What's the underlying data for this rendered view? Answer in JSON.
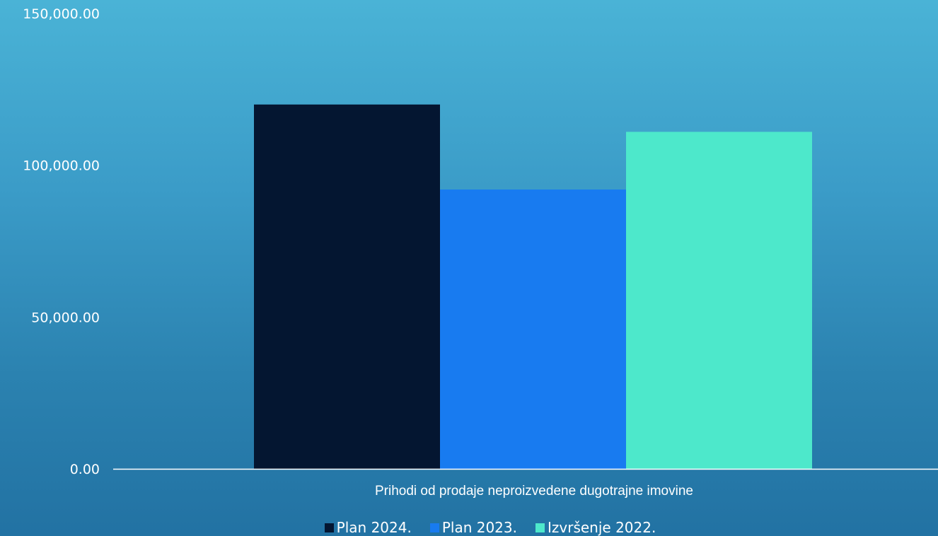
{
  "chart_data": {
    "type": "bar",
    "title": "",
    "xlabel": "",
    "ylabel": "",
    "categories": [
      "Prihodi od prodaje neproizvedene dugotrajne imovine"
    ],
    "series": [
      {
        "name": "Plan 2024.",
        "values": [
          120000
        ],
        "color": "#041631"
      },
      {
        "name": "Plan 2023.",
        "values": [
          92000
        ],
        "color": "#187bf0"
      },
      {
        "name": "Izvršenje 2022.",
        "values": [
          111000
        ],
        "color": "#4de8cb"
      }
    ],
    "ylim": [
      0,
      150000
    ],
    "yticks": [
      0,
      50000,
      100000,
      150000
    ],
    "ytick_labels": [
      "0.00",
      "50,000.00",
      "100,000.00",
      "150,000.00"
    ],
    "grid": false,
    "legend_position": "bottom"
  },
  "axis_color": "#ffffff"
}
